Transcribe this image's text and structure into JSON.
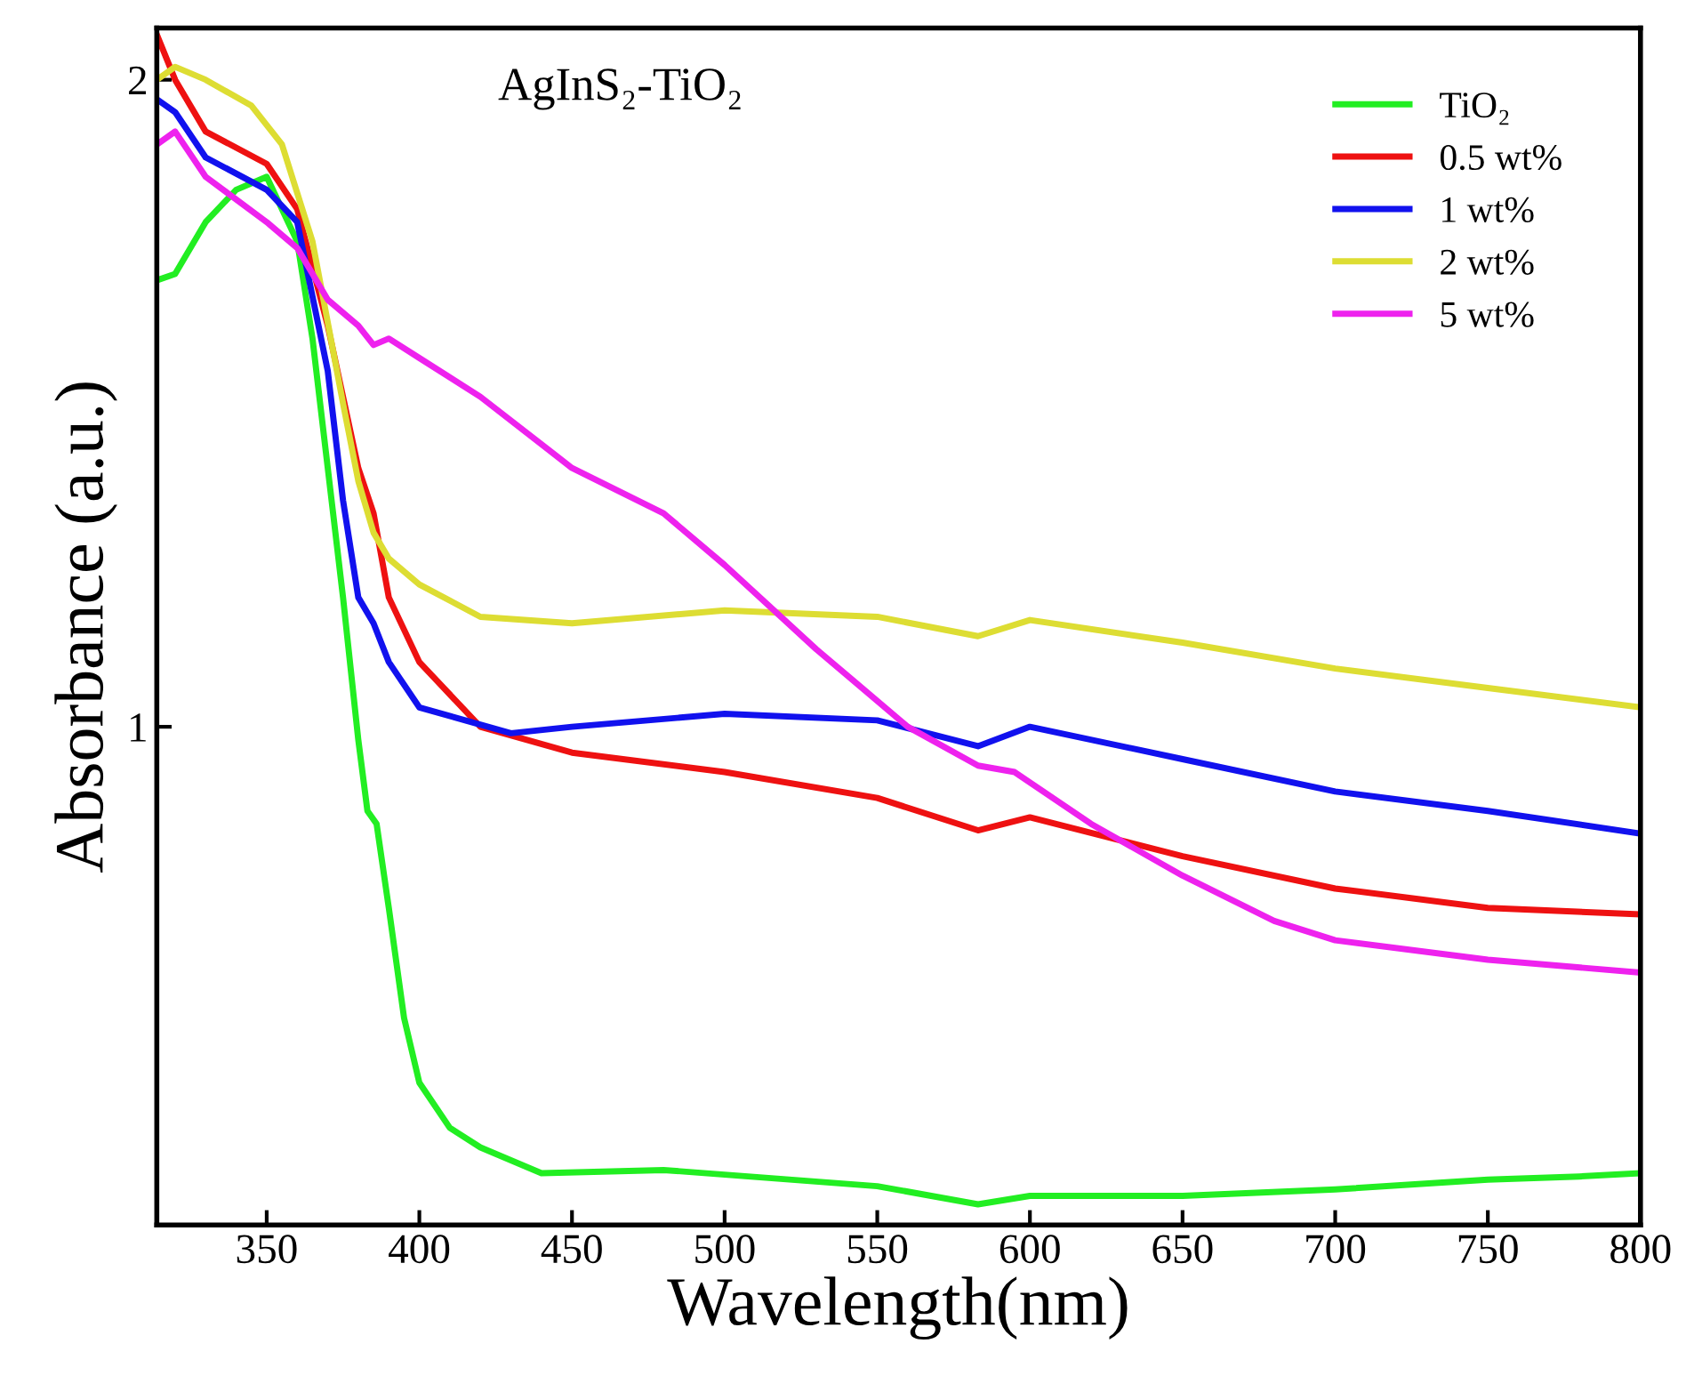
{
  "chart_data": {
    "type": "line",
    "xlabel": "Wavelength(nm)",
    "ylabel": "Absorbance (a.u.)",
    "annotations": [
      "AgInS₂-TiO₂"
    ],
    "xlim": [
      314,
      800
    ],
    "ylim": [
      0.23,
      2.08
    ],
    "xticks": [
      350,
      400,
      450,
      500,
      550,
      600,
      650,
      700,
      750,
      800
    ],
    "yticks": [
      1,
      2
    ],
    "grid": false,
    "legend": "top right",
    "marker": "none",
    "line_style": "solid",
    "series": [
      {
        "name": "TiO₂",
        "color": "#22ee22",
        "x": [
          314,
          320,
          330,
          340,
          350,
          360,
          365,
          370,
          375,
          380,
          383,
          386,
          390,
          395,
          400,
          410,
          420,
          440,
          480,
          550,
          583,
          600,
          650,
          700,
          750,
          780,
          800
        ],
        "values": [
          1.69,
          1.7,
          1.78,
          1.83,
          1.85,
          1.75,
          1.6,
          1.4,
          1.2,
          0.98,
          0.87,
          0.85,
          0.72,
          0.55,
          0.45,
          0.38,
          0.35,
          0.31,
          0.315,
          0.29,
          0.262,
          0.275,
          0.275,
          0.285,
          0.3,
          0.305,
          0.31
        ]
      },
      {
        "name": "0.5 wt%",
        "color": "#ee1111",
        "x": [
          314,
          320,
          330,
          350,
          360,
          370,
          380,
          385,
          390,
          400,
          420,
          450,
          500,
          550,
          583,
          600,
          650,
          700,
          750,
          800
        ],
        "values": [
          2.07,
          2.0,
          1.92,
          1.87,
          1.8,
          1.62,
          1.4,
          1.33,
          1.2,
          1.1,
          1.0,
          0.96,
          0.93,
          0.89,
          0.84,
          0.86,
          0.8,
          0.75,
          0.72,
          0.71
        ]
      },
      {
        "name": "1 wt%",
        "color": "#1111ee",
        "x": [
          314,
          320,
          330,
          350,
          360,
          370,
          375,
          380,
          385,
          390,
          400,
          430,
          450,
          500,
          550,
          583,
          600,
          650,
          700,
          750,
          800
        ],
        "values": [
          1.97,
          1.95,
          1.88,
          1.83,
          1.78,
          1.55,
          1.35,
          1.2,
          1.16,
          1.1,
          1.03,
          0.99,
          1.0,
          1.02,
          1.01,
          0.97,
          1.0,
          0.95,
          0.9,
          0.87,
          0.835
        ]
      },
      {
        "name": "2 wt%",
        "color": "#dddd33",
        "x": [
          314,
          320,
          330,
          345,
          355,
          365,
          375,
          380,
          385,
          390,
          400,
          420,
          450,
          500,
          550,
          583,
          600,
          650,
          700,
          750,
          800
        ],
        "values": [
          2.0,
          2.02,
          2.0,
          1.96,
          1.9,
          1.75,
          1.5,
          1.38,
          1.3,
          1.26,
          1.22,
          1.17,
          1.16,
          1.18,
          1.17,
          1.14,
          1.165,
          1.13,
          1.09,
          1.06,
          1.03
        ]
      },
      {
        "name": "5 wt%",
        "color": "#ee22ee",
        "x": [
          314,
          320,
          330,
          350,
          360,
          370,
          380,
          385,
          390,
          400,
          420,
          450,
          480,
          500,
          530,
          560,
          583,
          595,
          620,
          650,
          680,
          700,
          750,
          800
        ],
        "values": [
          1.9,
          1.92,
          1.85,
          1.78,
          1.74,
          1.66,
          1.62,
          1.59,
          1.6,
          1.57,
          1.51,
          1.4,
          1.33,
          1.25,
          1.12,
          1.0,
          0.94,
          0.93,
          0.85,
          0.77,
          0.7,
          0.67,
          0.64,
          0.62
        ]
      }
    ]
  }
}
